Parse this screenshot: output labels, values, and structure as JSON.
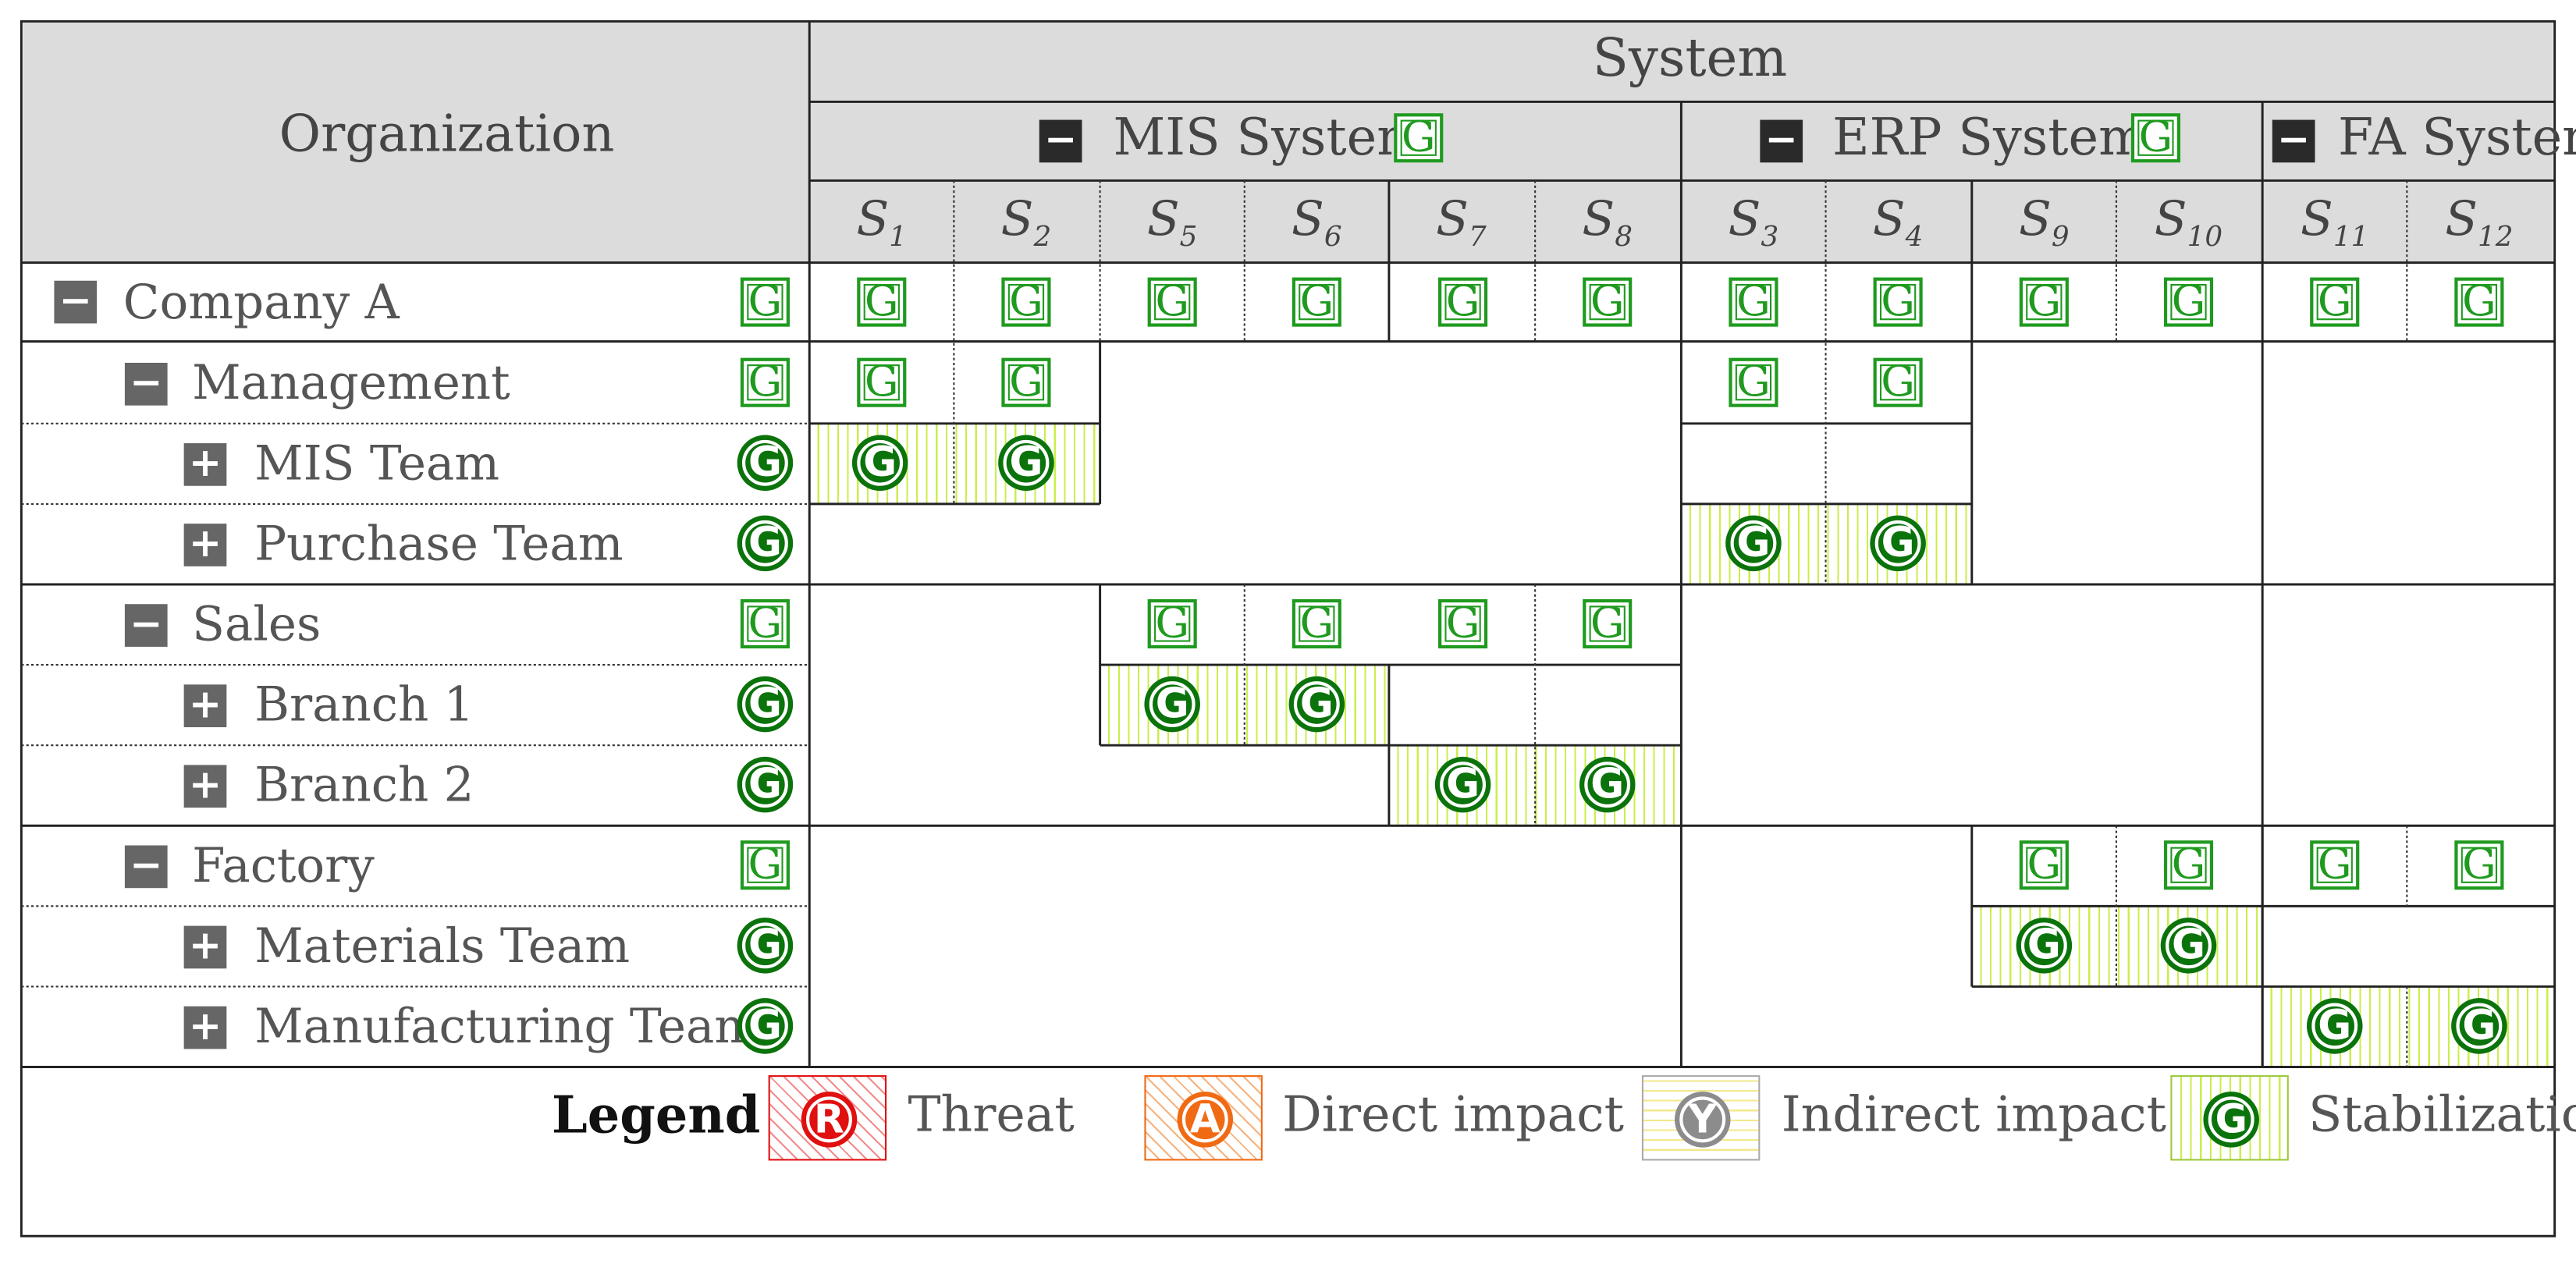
{
  "header": {
    "organization_label": "Organization",
    "system_label": "System",
    "groups": [
      {
        "label": "MIS System",
        "toggle": "−",
        "badge": "G"
      },
      {
        "label": "ERP System",
        "toggle": "−",
        "badge": "G"
      },
      {
        "label": "FA System",
        "toggle": "−"
      }
    ],
    "columns": [
      {
        "s": "S",
        "n": "1"
      },
      {
        "s": "S",
        "n": "2"
      },
      {
        "s": "S",
        "n": "5"
      },
      {
        "s": "S",
        "n": "6"
      },
      {
        "s": "S",
        "n": "7"
      },
      {
        "s": "S",
        "n": "8"
      },
      {
        "s": "S",
        "n": "3"
      },
      {
        "s": "S",
        "n": "4"
      },
      {
        "s": "S",
        "n": "9"
      },
      {
        "s": "S",
        "n": "10"
      },
      {
        "s": "S",
        "n": "11"
      },
      {
        "s": "S",
        "n": "12"
      }
    ]
  },
  "rows": [
    {
      "label": "Company A",
      "toggle": "−",
      "status": "G"
    },
    {
      "label": "Management",
      "toggle": "−",
      "status": "G"
    },
    {
      "label": "MIS Team",
      "toggle": "+",
      "status": "G"
    },
    {
      "label": "Purchase Team",
      "toggle": "+",
      "status": "G"
    },
    {
      "label": "Sales",
      "toggle": "−",
      "status": "G"
    },
    {
      "label": "Branch 1",
      "toggle": "+",
      "status": "G"
    },
    {
      "label": "Branch 2",
      "toggle": "+",
      "status": "G"
    },
    {
      "label": "Factory",
      "toggle": "−",
      "status": "G"
    },
    {
      "label": "Materials Team",
      "toggle": "+",
      "status": "G"
    },
    {
      "label": "Manufacturing Team",
      "toggle": "+",
      "status": "G"
    }
  ],
  "cells": {
    "row0": [
      "G",
      "G",
      "G",
      "G",
      "G",
      "G",
      "G",
      "G",
      "G",
      "G",
      "G",
      "G"
    ],
    "row1": [
      "G",
      "G",
      "G",
      "G"
    ],
    "row2": [
      "G",
      "G"
    ],
    "row3": [
      "G",
      "G"
    ],
    "row4": [
      "G",
      "G",
      "G",
      "G"
    ],
    "row5": [
      "G",
      "G"
    ],
    "row6": [
      "G",
      "G"
    ],
    "row7": [
      "G",
      "G",
      "G",
      "G"
    ],
    "row8": [
      "G",
      "G"
    ],
    "row9": [
      "G",
      "G"
    ]
  },
  "legend": {
    "title": "Legend",
    "items": [
      {
        "letter": "R",
        "label": "Threat",
        "color": "#e01010"
      },
      {
        "letter": "A",
        "label": "Direct impact",
        "color": "#f06a14"
      },
      {
        "letter": "Y",
        "label": "Indirect impact",
        "color": "#8c8c8c"
      },
      {
        "letter": "G",
        "label": "Stabilization",
        "color": "#0b730b"
      }
    ]
  },
  "colors": {
    "header_bg": "#dcdcdc",
    "stabilization_dark": "#0b730b",
    "stabilization_light": "#1f9a1f",
    "hatch": "#c9ef4a"
  }
}
